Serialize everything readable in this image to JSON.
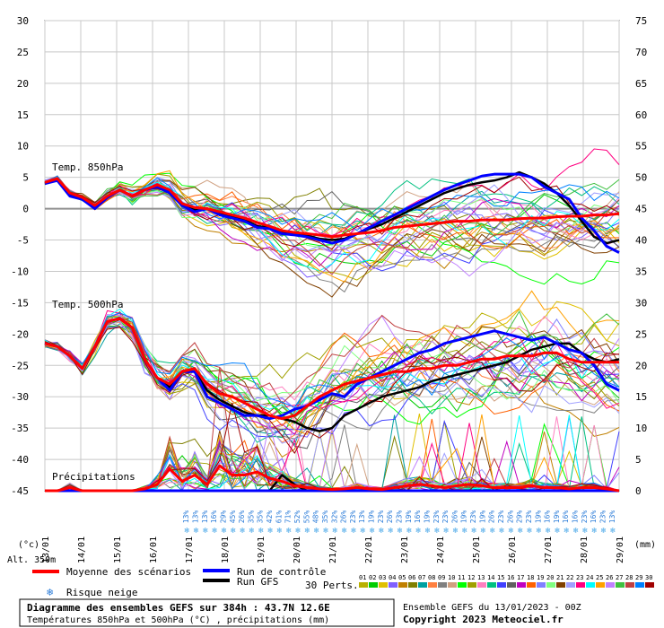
{
  "chart_data": {
    "type": "line",
    "upper_panel_title": "Temp. 850hPa",
    "middle_panel_title": "Temp. 500hPa",
    "lower_panel_title": "Précipitations",
    "left_axis_unit": "(°c)",
    "right_axis_unit": "(mm)",
    "altitude_label": "Alt. 350m",
    "left_ticks": [
      30,
      25,
      20,
      15,
      10,
      5,
      0,
      -5,
      -10,
      -15,
      -20,
      -25,
      -30,
      -35,
      -40,
      -45
    ],
    "right_ticks_temp": [
      75,
      70,
      65,
      60,
      55,
      50,
      45,
      40,
      35
    ],
    "right_ticks_precip": [
      30,
      25,
      20,
      15,
      10,
      5,
      0
    ],
    "x_dates": [
      "13/01",
      "14/01",
      "15/01",
      "16/01",
      "17/01",
      "18/01",
      "19/01",
      "20/01",
      "21/01",
      "22/01",
      "23/01",
      "24/01",
      "25/01",
      "26/01",
      "27/01",
      "28/01",
      "29/01"
    ],
    "snow_risk_pct": [
      "13%",
      "13%",
      "13%",
      "16%",
      "29%",
      "45%",
      "26%",
      "35%",
      "35%",
      "42%",
      "61%",
      "71%",
      "52%",
      "55%",
      "48%",
      "35%",
      "32%",
      "26%",
      "23%",
      "13%",
      "19%",
      "23%",
      "26%",
      "23%",
      "19%",
      "16%",
      "19%",
      "23%",
      "23%",
      "26%",
      "19%",
      "23%",
      "19%",
      "26%",
      "23%",
      "26%",
      "29%",
      "23%",
      "19%",
      "16%",
      "19%",
      "16%",
      "16%",
      "23%",
      "16%",
      "23%",
      "13%"
    ],
    "series": [
      {
        "name": "Moyenne des scénarios",
        "color": "#ff0000",
        "t850": [
          4.2,
          4.8,
          2.5,
          1.8,
          0.5,
          2.0,
          3.0,
          2.0,
          3.0,
          3.8,
          3.0,
          0.8,
          0.2,
          0.0,
          -0.5,
          -1.0,
          -1.5,
          -2.2,
          -2.8,
          -3.5,
          -3.8,
          -4.0,
          -4.2,
          -4.5,
          -4.2,
          -4.0,
          -3.8,
          -3.5,
          -3.0,
          -2.8,
          -2.6,
          -2.4,
          -2.2,
          -2.0,
          -2.0,
          -1.8,
          -1.8,
          -1.8,
          -1.6,
          -1.5,
          -1.5,
          -1.3,
          -1.2,
          -1.2,
          -1.0,
          -1.0,
          -0.8
        ],
        "t500": [
          -21.5,
          -22.0,
          -23.5,
          -25.5,
          -22.0,
          -18.0,
          -17.5,
          -19.0,
          -24.0,
          -27.0,
          -28.0,
          -26.0,
          -25.5,
          -28.0,
          -29.5,
          -30.0,
          -31.0,
          -32.0,
          -33.0,
          -33.5,
          -33.0,
          -31.5,
          -30.0,
          -29.0,
          -28.0,
          -27.5,
          -27.0,
          -26.5,
          -26.0,
          -26.0,
          -25.5,
          -25.5,
          -25.0,
          -25.0,
          -24.5,
          -24.0,
          -24.0,
          -23.5,
          -23.5,
          -23.5,
          -23.0,
          -23.0,
          -24.0,
          -24.5,
          -24.5,
          -24.5,
          -24.5
        ],
        "precip": [
          0,
          0,
          0.5,
          0,
          0,
          0,
          0,
          0,
          0.3,
          1.0,
          3.5,
          1.5,
          2.5,
          1.0,
          4.0,
          2.5,
          2.5,
          3.0,
          2.0,
          1.5,
          0.8,
          0.5,
          0.3,
          0.2,
          0.3,
          0.5,
          0.3,
          0.2,
          0.5,
          0.8,
          1.0,
          0.8,
          0.5,
          0.8,
          1.0,
          0.8,
          0.5,
          0.5,
          0.5,
          0.8,
          0.5,
          0.5,
          0.3,
          0.5,
          0.5,
          0.3,
          0
        ]
      },
      {
        "name": "Run de contrôle",
        "color": "#0000ff",
        "t850": [
          4.0,
          4.5,
          2.0,
          1.5,
          0.0,
          1.8,
          3.0,
          2.0,
          3.0,
          3.5,
          2.5,
          0.5,
          -0.5,
          0.0,
          -1.0,
          -1.5,
          -2.0,
          -3.0,
          -3.2,
          -4.0,
          -4.2,
          -4.5,
          -5.0,
          -5.5,
          -5.0,
          -4.0,
          -3.0,
          -2.0,
          -1.0,
          0.0,
          1.0,
          2.0,
          3.0,
          3.8,
          4.5,
          5.2,
          5.5,
          5.5,
          5.5,
          5.0,
          3.5,
          2.5,
          1.5,
          -1.5,
          -3.5,
          -6.0,
          -7.0
        ],
        "t500": [
          -21.5,
          -22.0,
          -23.5,
          -25.5,
          -22.0,
          -18.0,
          -17.5,
          -19.0,
          -24.0,
          -27.0,
          -29.0,
          -26.0,
          -26.0,
          -30.0,
          -31.0,
          -32.0,
          -33.0,
          -33.0,
          -33.5,
          -33.0,
          -32.0,
          -31.5,
          -30.5,
          -29.5,
          -30.0,
          -28.0,
          -27.0,
          -26.0,
          -25.0,
          -24.0,
          -23.0,
          -22.5,
          -21.5,
          -21.0,
          -20.5,
          -20.0,
          -19.5,
          -20.0,
          -20.5,
          -21.0,
          -20.5,
          -21.5,
          -22.5,
          -23.0,
          -25.0,
          -28.0,
          -29.0
        ],
        "precip": [
          0,
          0,
          0,
          0,
          0,
          0,
          0,
          0,
          0,
          0,
          0,
          0,
          0,
          0,
          0,
          0,
          0,
          0,
          0,
          0,
          0,
          0,
          0,
          0,
          0,
          0,
          0,
          0,
          0,
          0,
          0,
          0,
          0,
          0,
          0,
          0,
          0,
          0,
          0,
          0,
          0,
          0,
          0,
          0,
          0,
          0,
          0
        ]
      },
      {
        "name": "Run GFS",
        "color": "#000000",
        "t850": [
          4.0,
          4.6,
          2.2,
          1.6,
          0.2,
          1.9,
          3.0,
          2.0,
          3.0,
          3.6,
          2.7,
          0.6,
          -0.2,
          0.0,
          -0.8,
          -1.2,
          -1.8,
          -2.8,
          -3.0,
          -3.8,
          -4.0,
          -4.3,
          -4.8,
          -5.0,
          -4.8,
          -4.0,
          -3.2,
          -2.5,
          -1.5,
          -0.5,
          0.5,
          1.5,
          2.5,
          3.2,
          3.8,
          4.2,
          4.5,
          5.0,
          5.8,
          5.0,
          4.0,
          2.5,
          0.5,
          -2.0,
          -4.5,
          -5.5,
          -5.0
        ],
        "t500": [
          -21.5,
          -22.0,
          -23.5,
          -25.5,
          -22.0,
          -18.0,
          -17.5,
          -19.0,
          -24.0,
          -27.0,
          -28.5,
          -26.0,
          -26.0,
          -29.0,
          -30.5,
          -31.5,
          -32.5,
          -33.0,
          -33.0,
          -33.5,
          -34.0,
          -35.0,
          -35.5,
          -35.0,
          -33.0,
          -32.0,
          -31.0,
          -30.0,
          -29.5,
          -29.0,
          -28.5,
          -27.5,
          -27.0,
          -26.5,
          -26.0,
          -25.5,
          -25.0,
          -24.5,
          -23.5,
          -22.5,
          -22.0,
          -21.5,
          -21.5,
          -23.0,
          -24.0,
          -24.5,
          -24.0
        ],
        "precip": [
          0,
          0,
          0,
          0,
          0,
          0,
          0,
          0,
          0,
          0,
          0,
          0,
          0,
          0,
          0,
          0,
          0,
          0,
          0,
          2.5,
          1.0,
          0,
          0,
          0,
          0,
          0,
          0,
          0,
          0,
          0,
          0,
          0,
          0,
          0,
          0,
          0,
          0,
          0,
          0,
          0,
          0,
          0,
          0,
          0,
          0,
          0,
          0
        ]
      }
    ],
    "ensemble_label": "30 Perts.",
    "member_labels": [
      "01",
      "02",
      "03",
      "04",
      "05",
      "06",
      "07",
      "08",
      "09",
      "10",
      "11",
      "12",
      "13",
      "14",
      "15",
      "16",
      "17",
      "18",
      "19",
      "20",
      "21",
      "22",
      "23",
      "24",
      "25",
      "26",
      "27",
      "28",
      "29",
      "30"
    ],
    "member_colors": [
      "#b8b000",
      "#00cc00",
      "#e0c000",
      "#8060ff",
      "#c08000",
      "#808000",
      "#00a0a0",
      "#ff8040",
      "#808080",
      "#d0a080",
      "#00ff00",
      "#a0a000",
      "#ff80c0",
      "#00c080",
      "#4040ff",
      "#606060",
      "#c000c0",
      "#ff6000",
      "#8080ff",
      "#80ff80",
      "#804000",
      "#a0a0ff",
      "#ff0080",
      "#00ffff",
      "#ffa000",
      "#c080ff",
      "#40c040",
      "#c04040",
      "#0080ff",
      "#a00000"
    ],
    "legend": {
      "mean": "Moyenne des scénarios",
      "control": "Run de contrôle",
      "gfs": "Run GFS",
      "snow": "Risque neige"
    },
    "footer": {
      "title": "Diagramme des ensembles GEFS sur 384h : 43.7N 12.6E",
      "subtitle": "Températures 850hPa et 500hPa (°C) , précipitations (mm)",
      "run": "Ensemble GEFS du 13/01/2023 - 00Z",
      "copyright": "Copyright 2023 Meteociel.fr"
    }
  }
}
